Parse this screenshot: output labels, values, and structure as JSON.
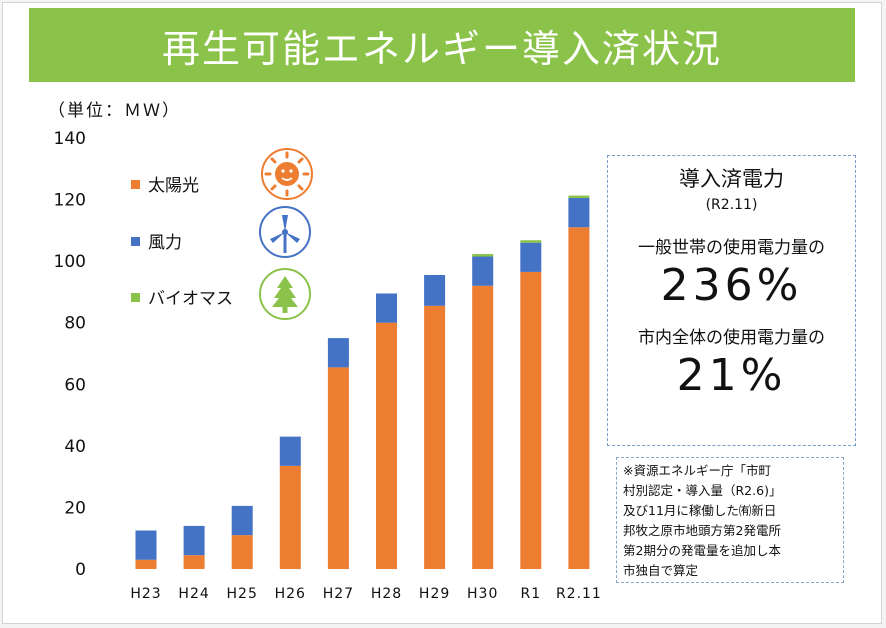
{
  "title": "再生可能エネルギー導入済状況",
  "unit_label": "（単位：ＭＷ）",
  "legend": {
    "solar": {
      "label": "太陽光",
      "color": "#ed7d31",
      "icon": "sun-icon"
    },
    "wind": {
      "label": "風力",
      "color": "#4472c4",
      "icon": "wind-turbine-icon"
    },
    "biomass": {
      "label": "バイオマス",
      "color": "#8bc34a",
      "icon": "tree-icon"
    }
  },
  "info_box": {
    "heading": "導入済電力",
    "date": "(R2.11)",
    "households_caption": "一般世帯の使用電力量の",
    "households_value": "236%",
    "city_caption": "市内全体の使用電力量の",
    "city_value": "21%"
  },
  "note_lines": [
    "※資源エネルギー庁「市町",
    "村別認定・導入量（R2.6)」",
    "及び11月に稼働した㈲新日",
    "邦牧之原市地頭方第2発電所",
    "第2期分の発電量を追加し本",
    "市独自で算定"
  ],
  "chart_data": {
    "type": "bar",
    "stacked": true,
    "categories": [
      "H23",
      "H24",
      "H25",
      "H26",
      "H27",
      "H28",
      "H29",
      "H30",
      "R1",
      "R2.11"
    ],
    "series": [
      {
        "name": "太陽光",
        "color": "#ed7d31",
        "values": [
          3,
          4.5,
          11,
          33.5,
          65.5,
          80,
          85.5,
          92,
          96.5,
          111
        ]
      },
      {
        "name": "風力",
        "color": "#4472c4",
        "values": [
          9.5,
          9.5,
          9.5,
          9.5,
          9.5,
          9.5,
          10,
          9.5,
          9.5,
          9.5
        ]
      },
      {
        "name": "バイオマス",
        "color": "#8bc34a",
        "values": [
          0,
          0,
          0,
          0,
          0,
          0,
          0,
          0.8,
          0.8,
          0.8
        ]
      }
    ],
    "ylim": [
      0,
      140
    ],
    "yticks": [
      0,
      20,
      40,
      60,
      80,
      100,
      120,
      140
    ],
    "ylabel": "（単位：ＭＷ）",
    "grid": false,
    "legend_position": "upper-left"
  }
}
